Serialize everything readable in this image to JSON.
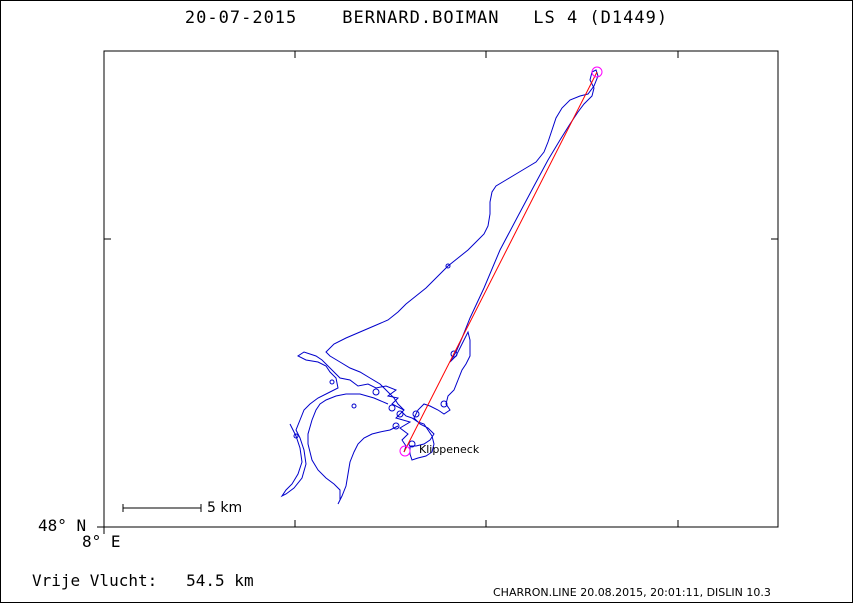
{
  "header": {
    "date": "20-07-2015",
    "pilot": "BERNARD.BOIMAN",
    "glider": "LS 4 (D1449)"
  },
  "map": {
    "origin_lat_label": "48° N",
    "origin_lon_label": "8° E",
    "scale_label": "5 km",
    "place_label": "Klippeneck",
    "track_color": "#0000cc",
    "route_color": "#ff0000",
    "turnpoint_color": "#ff00ff"
  },
  "result": {
    "label": "Vrije Vlucht:",
    "value": "54.5 km"
  },
  "footer": {
    "text": "CHARRON.LINE 20.08.2015, 20:01:11, DISLIN 10.3"
  }
}
